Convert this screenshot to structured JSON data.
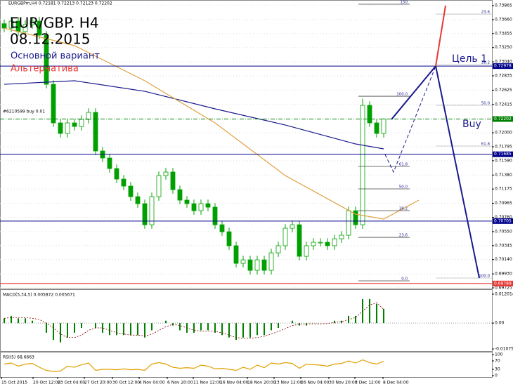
{
  "chart_data": [
    {
      "type": "candlestick",
      "title": "EUR/GBP. H4",
      "subtitle": "EURGBPm,H4  0.72181 0.72213 0.72123 0.72202",
      "annotations": [
        "08.12.2015",
        "Цель 1",
        "Buy",
        "#6210599 buy 0.01"
      ],
      "xlim": [
        -0.6,
        69.4
      ],
      "ylim": [
        0.69725,
        0.73865
      ],
      "grid": true,
      "up_color": "#00a000",
      "down_color": "#00a000",
      "yticks": [
        0.73865,
        {
          "value": 0.7366,
          "label": "0.73660"
        },
        0.73455,
        {
          "value": 0.7325,
          "label": "0.73250"
        },
        {
          "value": 0.7304,
          "label": "0.73040"
        },
        0.72835,
        0.72625,
        0.72415,
        {
          "value": 0.72,
          "label": "0.72000"
        },
        0.71795,
        {
          "value": 0.7159,
          "label": "0.71590"
        },
        {
          "value": 0.7138,
          "label": "0.71380"
        },
        0.71175,
        0.70965,
        {
          "value": 0.7076,
          "label": "0.70760"
        },
        {
          "value": 0.7055,
          "label": "0.70550"
        },
        0.70345,
        {
          "value": 0.7014,
          "label": "0.70140"
        },
        {
          "value": 0.6993,
          "label": "0.69930"
        },
        0.69725
      ],
      "open": [
        0.736,
        0.73535,
        0.73638,
        0.73484,
        0.73587,
        0.73638,
        0.73432,
        0.72711,
        0.72145,
        0.7199,
        0.72145,
        0.72093,
        0.72196,
        0.72299,
        0.71733,
        0.7163,
        0.71475,
        0.71321,
        0.71218,
        0.71063,
        0.7096,
        0.70651,
        0.71063,
        0.71372,
        0.71424,
        0.71166,
        0.71012,
        0.7096,
        0.70857,
        0.7096,
        0.70909,
        0.70651,
        0.70548,
        0.70343,
        0.70085,
        0.70136,
        0.69982,
        0.70136,
        0.69982,
        0.70239,
        0.70343,
        0.706,
        0.70651,
        0.70188,
        0.70343,
        0.70394,
        0.70394,
        0.70343,
        0.70445,
        0.70497,
        0.70857,
        0.70651,
        0.72402,
        0.72145,
        0.7199
      ],
      "high": [
        0.7366,
        0.73698,
        0.73698,
        0.73647,
        0.73698,
        0.73698,
        0.73492,
        0.72771,
        0.72205,
        0.72205,
        0.72205,
        0.72256,
        0.72359,
        0.72359,
        0.71793,
        0.7169,
        0.71535,
        0.71381,
        0.71278,
        0.71123,
        0.7102,
        0.71123,
        0.71432,
        0.71484,
        0.71484,
        0.71226,
        0.71072,
        0.7102,
        0.7102,
        0.7102,
        0.70969,
        0.70711,
        0.70608,
        0.70403,
        0.70196,
        0.70196,
        0.70196,
        0.70196,
        0.70299,
        0.70403,
        0.7066,
        0.70711,
        0.70711,
        0.70403,
        0.70454,
        0.70454,
        0.70454,
        0.70505,
        0.70557,
        0.70917,
        0.70917,
        0.725,
        0.72462,
        0.72205,
        0.72213
      ],
      "low": [
        0.73475,
        0.73475,
        0.73424,
        0.73424,
        0.73527,
        0.73372,
        0.72651,
        0.72085,
        0.7193,
        0.7193,
        0.72033,
        0.72033,
        0.72136,
        0.71673,
        0.7157,
        0.71415,
        0.71261,
        0.71158,
        0.71003,
        0.709,
        0.70591,
        0.70591,
        0.71003,
        0.71312,
        0.71106,
        0.70952,
        0.709,
        0.70797,
        0.70797,
        0.70849,
        0.70591,
        0.70488,
        0.70283,
        0.70025,
        0.70025,
        0.69922,
        0.69922,
        0.69922,
        0.69922,
        0.70179,
        0.70283,
        0.7054,
        0.70128,
        0.70128,
        0.70283,
        0.70334,
        0.70283,
        0.70283,
        0.70385,
        0.70437,
        0.70591,
        0.70591,
        0.72085,
        0.7193,
        0.7193
      ],
      "close": [
        0.73535,
        0.73638,
        0.73484,
        0.73587,
        0.73638,
        0.73432,
        0.72711,
        0.72145,
        0.7199,
        0.72145,
        0.72093,
        0.72196,
        0.72299,
        0.71733,
        0.7163,
        0.71475,
        0.71321,
        0.71218,
        0.71063,
        0.7096,
        0.70651,
        0.71063,
        0.71372,
        0.71424,
        0.71166,
        0.71012,
        0.7096,
        0.70857,
        0.7096,
        0.70909,
        0.70651,
        0.70548,
        0.70343,
        0.70085,
        0.70136,
        0.69982,
        0.70136,
        0.69982,
        0.70239,
        0.70343,
        0.706,
        0.70651,
        0.70188,
        0.70343,
        0.70394,
        0.70394,
        0.70343,
        0.70445,
        0.70497,
        0.70857,
        0.70651,
        0.72402,
        0.72145,
        0.7199,
        0.72202
      ],
      "moving_averages": [
        {
          "color": "#1a1a8c",
          "x": [
            0,
            10,
            20,
            30,
            40,
            50,
            54
          ],
          "values": [
            0.72711,
            0.72763,
            0.72608,
            0.72351,
            0.72114,
            0.71836,
            0.71764
          ]
        },
        {
          "color": "#e0a040",
          "x": [
            0,
            10,
            20,
            30,
            40,
            50,
            54,
            59
          ],
          "values": [
            0.73535,
            0.73278,
            0.72763,
            0.72145,
            0.71372,
            0.70806,
            0.70734,
            0.71012
          ]
        }
      ],
      "levels": [
        {
          "price": 0.72978,
          "color": "#00008b"
        },
        {
          "price": 0.72202,
          "color": "#008000"
        },
        {
          "price": 0.71685,
          "color": "#00008b"
        },
        {
          "price": 0.70705,
          "color": "#00008b"
        },
        {
          "price": 0.69789,
          "color": "#e53935"
        }
      ],
      "fibonacci": [
        {
          "levels": [
            {
              "label": "150",
              "price": 0.73886
            },
            {
              "label": "100.0",
              "price": 0.72536
            },
            {
              "label": "61.8",
              "price": 0.71507
            },
            {
              "label": "50.0",
              "price": 0.71177
            },
            {
              "label": "38.2",
              "price": 0.70858
            },
            {
              "label": "23.6",
              "price": 0.70466
            },
            {
              "label": "0.0",
              "price": 0.69828
            }
          ]
        },
        {
          "levels": [
            {
              "label": "23.6",
              "price": 0.73741
            },
            {
              "label": "38.2",
              "price": 0.72999
            },
            {
              "label": "50.0",
              "price": 0.72403
            },
            {
              "label": "61.8",
              "price": 0.71805
            },
            {
              "label": "100.0",
              "price": 0.69869
            }
          ]
        }
      ],
      "projections": [
        {
          "name": "Основной вариант",
          "color": "#1a1a8c",
          "x": [
            55.1,
            61.4,
            67.6
          ],
          "values": [
            0.72196,
            0.72978,
            0.69869
          ]
        },
        {
          "name": "Альтернатива",
          "color": "#e53935",
          "x": [
            61.4,
            62.8
          ],
          "values": [
            0.72978,
            0.73865
          ]
        },
        {
          "color": "#1a1a8c",
          "dash": true,
          "x": [
            54.2,
            55.4,
            61.4
          ],
          "values": [
            0.71681,
            0.71424,
            0.72978
          ]
        }
      ]
    },
    {
      "type": "bar",
      "title": "MACD(5,34,5) 0.005872 0.005671",
      "xlim": [
        -0.6,
        69.4
      ],
      "ylim": [
        -0.01162,
        0.01375
      ],
      "yticks": [
        0.012014,
        {
          "value": 0,
          "label": "0.00"
        },
        -0.010751
      ],
      "color": "#008000",
      "signal_color": "#800000",
      "values": [
        0.002,
        0.003,
        0.002,
        0.002,
        0.001,
        0,
        -0.004,
        -0.007,
        -0.008,
        -0.006,
        -0.004,
        -0.002,
        0,
        -0.002,
        -0.004,
        -0.005,
        -0.005,
        -0.005,
        -0.005,
        -0.005,
        -0.006,
        -0.003,
        0,
        0.001,
        -0.001,
        -0.003,
        -0.004,
        -0.004,
        -0.003,
        -0.003,
        -0.004,
        -0.005,
        -0.006,
        -0.007,
        -0.006,
        -0.006,
        -0.005,
        -0.005,
        -0.003,
        -0.002,
        0,
        0.001,
        -0.001,
        -0.001,
        0,
        0,
        0,
        0.001,
        0.001,
        0.003,
        0.003,
        0.01,
        0.01,
        0.008,
        0.005872
      ],
      "signal": [
        0.002,
        0.0023,
        0.0023,
        0.0023,
        0.002,
        0.0015,
        0,
        -0.002,
        -0.0045,
        -0.006,
        -0.006,
        -0.005,
        -0.003,
        -0.002,
        -0.002,
        -0.003,
        -0.004,
        -0.0045,
        -0.005,
        -0.005,
        -0.0053,
        -0.0047,
        -0.003,
        -0.0015,
        -0.0005,
        -0.001,
        -0.002,
        -0.003,
        -0.0033,
        -0.0033,
        -0.0035,
        -0.004,
        -0.005,
        -0.006,
        -0.0063,
        -0.0063,
        -0.006,
        -0.0055,
        -0.0045,
        -0.0035,
        -0.0023,
        -0.001,
        -0.0005,
        -0.0003,
        -0.0003,
        -0.0003,
        -0.0002,
        0.0003,
        0.0006,
        0.0015,
        0.0023,
        0.005,
        0.0075,
        0.0085,
        0.005671
      ]
    },
    {
      "type": "line",
      "title": "RSI(5) 68.6663",
      "xlim": [
        -0.6,
        69.4
      ],
      "ylim": [
        0,
        100
      ],
      "yticks": [
        100,
        70,
        30,
        0
      ],
      "color": "#e0a000",
      "values": [
        55,
        60,
        45,
        55,
        58,
        40,
        25,
        20,
        22,
        45,
        40,
        52,
        60,
        25,
        30,
        30,
        28,
        32,
        28,
        30,
        25,
        55,
        62,
        55,
        40,
        35,
        38,
        35,
        50,
        45,
        32,
        35,
        30,
        25,
        40,
        30,
        50,
        38,
        60,
        55,
        62,
        58,
        35,
        55,
        52,
        50,
        45,
        55,
        58,
        70,
        60,
        75,
        62,
        55,
        68.6663
      ],
      "xticks": [
        {
          "value": -0.4,
          "label": "15 Oct 2015"
        },
        {
          "value": 4.1,
          "label": "20 Oct 12:00"
        },
        {
          "value": 7.6,
          "label": "23 Oct 04:00"
        },
        {
          "value": 11.4,
          "label": "27 Oct 20:00"
        },
        {
          "value": 15.4,
          "label": "30 Oct 12:00"
        },
        {
          "value": 19.2,
          "label": "4 Nov 04:00"
        },
        {
          "value": 23.2,
          "label": "6 Nov 20:00"
        },
        {
          "value": 26.9,
          "label": "11 Nov 12:00"
        },
        {
          "value": 30.7,
          "label": "16 Nov 04:00"
        },
        {
          "value": 34.6,
          "label": "18 Nov 20:00"
        },
        {
          "value": 38.4,
          "label": "23 Nov 12:00"
        },
        {
          "value": 42.2,
          "label": "26 Nov 04:00"
        },
        {
          "value": 46.2,
          "label": "30 Nov 20:00"
        },
        {
          "value": 49.9,
          "label": "3 Dec 12:00"
        },
        {
          "value": 53.9,
          "label": "8 Dec 04:00"
        }
      ]
    }
  ]
}
